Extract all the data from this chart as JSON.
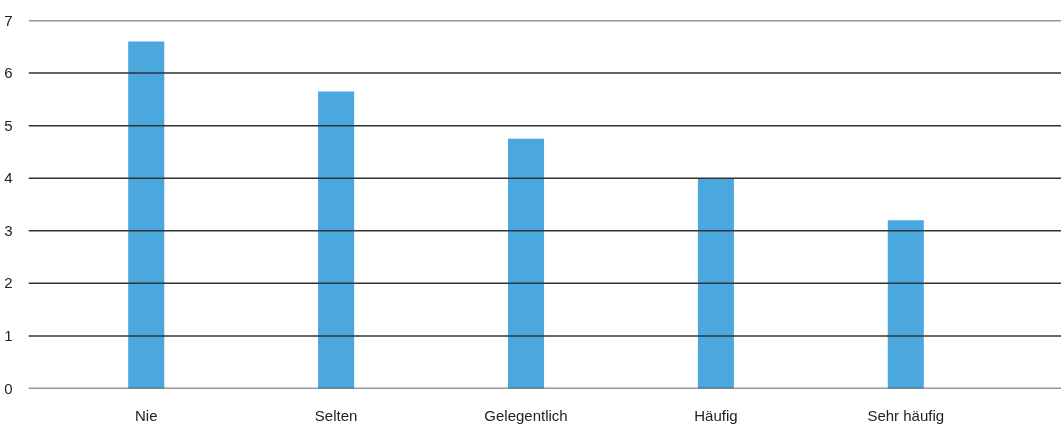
{
  "chart_data": {
    "type": "bar",
    "categories": [
      "Nie",
      "Selten",
      "Gelegentlich",
      "Häufig",
      "Sehr häufig"
    ],
    "values": [
      6.6,
      5.65,
      4.75,
      4.0,
      3.2
    ],
    "color": "#4aa8df",
    "ylim": [
      0,
      7
    ],
    "yticks": [
      0,
      1,
      2,
      3,
      4,
      5,
      6,
      7
    ],
    "grid": "y"
  }
}
